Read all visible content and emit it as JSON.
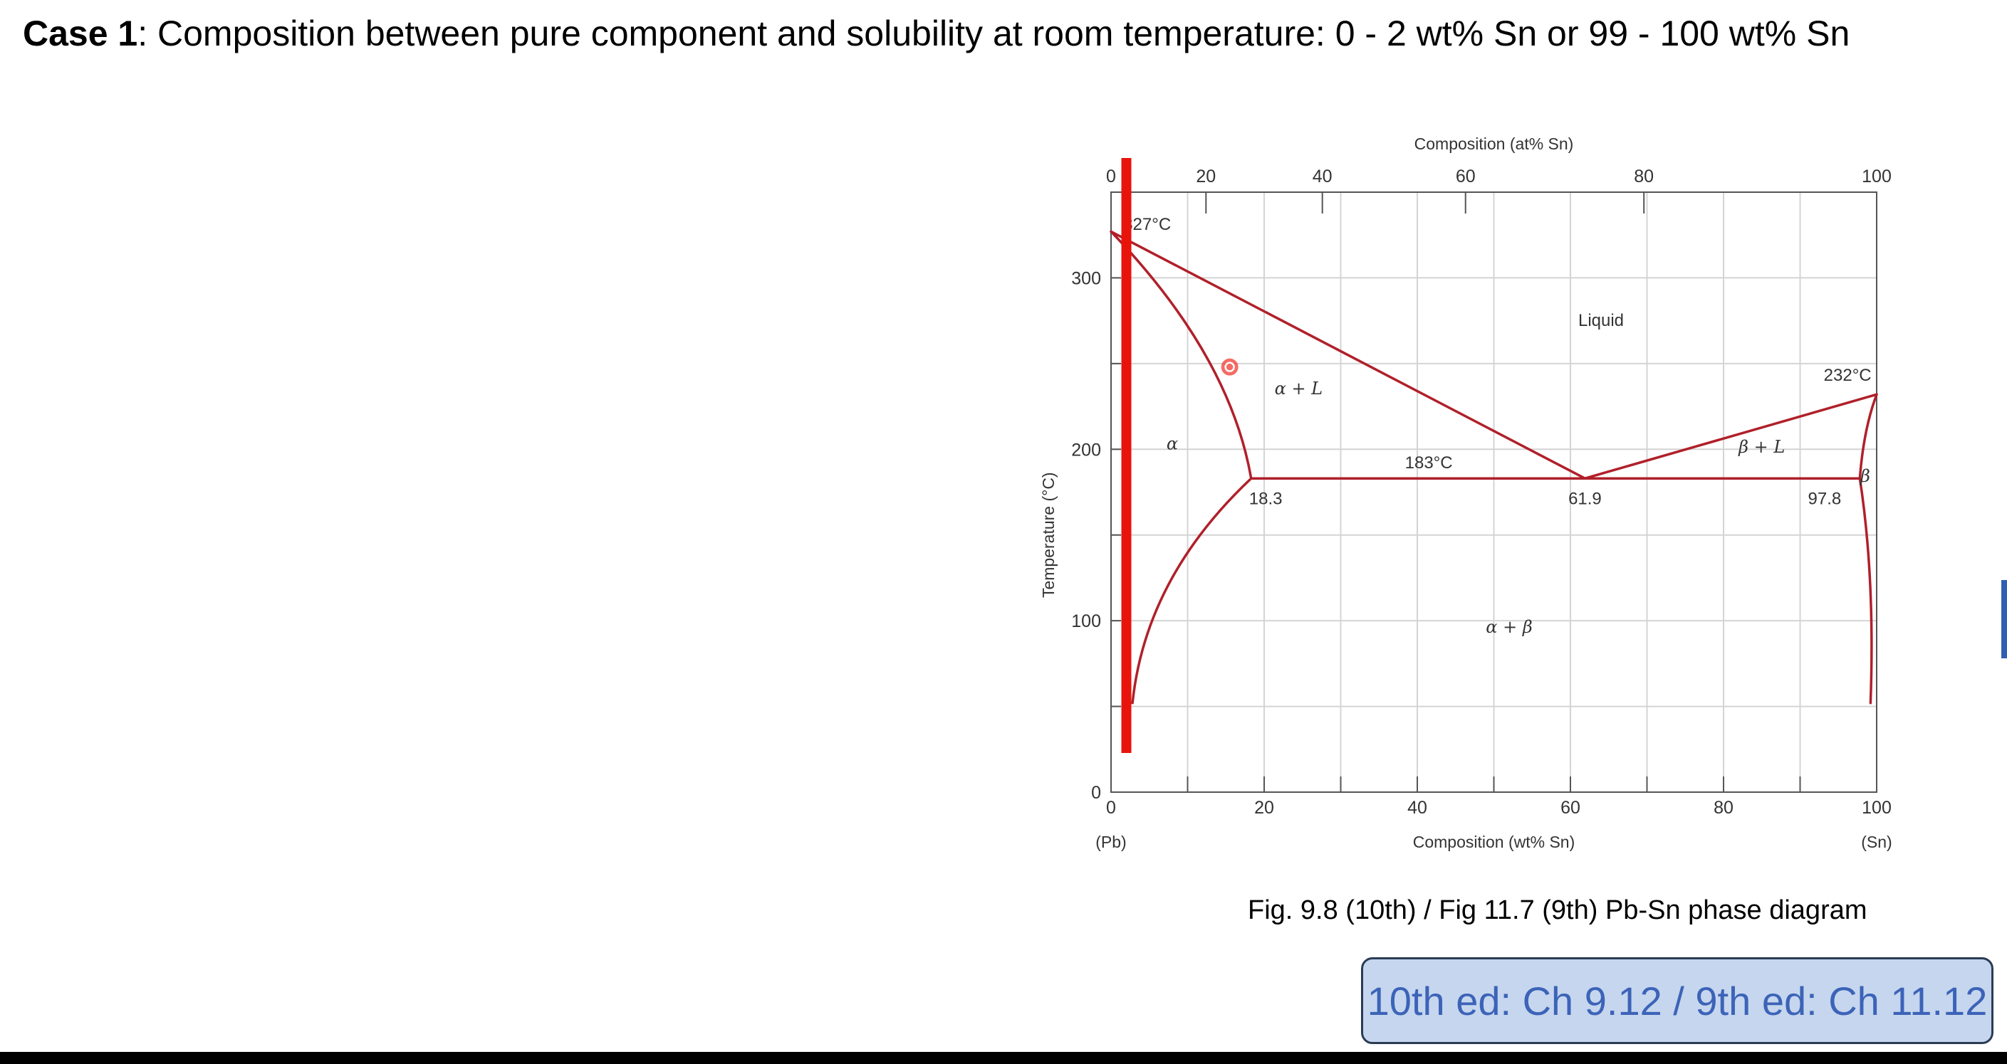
{
  "slide": {
    "case_label": "Case 1",
    "case_text": ": Composition between pure component and solubility at room temperature: 0 - 2 wt% Sn or 99 - 100 wt% Sn",
    "caption": "Fig. 9.8 (10th) / Fig 11.7 (9th) Pb-Sn phase diagram",
    "reference_box": "10th ed: Ch 9.12 / 9th ed: Ch 11.12"
  },
  "diagram": {
    "top_axis_title": "Composition (at% Sn)",
    "top_ticks": [
      {
        "label": "0",
        "wt": 0
      },
      {
        "label": "20",
        "wt": 12.4
      },
      {
        "label": "40",
        "wt": 27.6
      },
      {
        "label": "60",
        "wt": 46.3
      },
      {
        "label": "80",
        "wt": 69.6
      },
      {
        "label": "100",
        "wt": 100
      }
    ],
    "bottom_axis_title": "Composition (wt% Sn)",
    "bottom_ticks": [
      "0",
      "20",
      "40",
      "60",
      "80",
      "100"
    ],
    "bottom_left_end": "(Pb)",
    "bottom_right_end": "(Sn)",
    "y_axis_title": "Temperature (°C)",
    "y_ticks": [
      "0",
      "100",
      "200",
      "300"
    ],
    "x_range_wt": [
      0,
      100
    ],
    "y_range_c": [
      0,
      350
    ],
    "phase_labels": {
      "liquid": "Liquid",
      "alpha": "α",
      "alpha_liquid": "α + L",
      "beta_liquid": "β + L",
      "alpha_beta": "α + β",
      "beta": "β"
    },
    "annotations": {
      "pb_melting": "327°C",
      "sn_melting": "232°C",
      "eutectic_temp": "183°C",
      "alpha_solvus_limit": "18.3",
      "eutectic_comp": "61.9",
      "beta_solvus_limit": "97.8"
    },
    "key_points": {
      "pb_melt_c": 327,
      "sn_melt_c": 232,
      "eutectic_c": 183,
      "alpha_max_wt": 18.3,
      "eutectic_wt": 61.9,
      "beta_max_wt": 97.8
    },
    "marker_composition_wt": 2,
    "cursor_point": {
      "wt": 15.5,
      "temp_c": 248
    },
    "colors": {
      "phase_lines": "#b0202a",
      "marker_line": "#e8140c",
      "grid": "#d4d4d4",
      "axis": "#555555",
      "reference_box_bg": "#c5d6ee",
      "reference_box_text": "#3c63b8"
    }
  }
}
